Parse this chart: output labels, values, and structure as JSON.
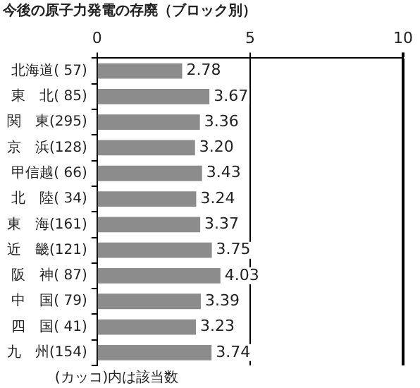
{
  "chart_data": {
    "type": "bar",
    "orientation": "horizontal",
    "title": "今後の原子力発電の存廃（ブロック別）",
    "categories": [
      "北海道( 57)",
      "東　北( 85)",
      "関　東(295)",
      "京　浜(128)",
      "甲信越( 66)",
      "北　陸( 34)",
      "東　海(161)",
      "近　畿(121)",
      "阪　神( 87)",
      "中　国( 79)",
      "四　国( 41)",
      "九　州(154)"
    ],
    "values": [
      2.78,
      3.67,
      3.36,
      3.2,
      3.43,
      3.24,
      3.37,
      3.75,
      4.03,
      3.39,
      3.23,
      3.74
    ],
    "value_labels": [
      "2.78",
      "3.67",
      "3.36",
      "3.20",
      "3.43",
      "3.24",
      "3.37",
      "3.75",
      "4.03",
      "3.39",
      "3.23",
      "3.74"
    ],
    "color": "#8c8c8c",
    "xlim": [
      0,
      10
    ],
    "xticks": [
      0,
      5,
      10
    ],
    "grid": "x",
    "annotations": [
      "(カッコ)内は該当数"
    ]
  }
}
